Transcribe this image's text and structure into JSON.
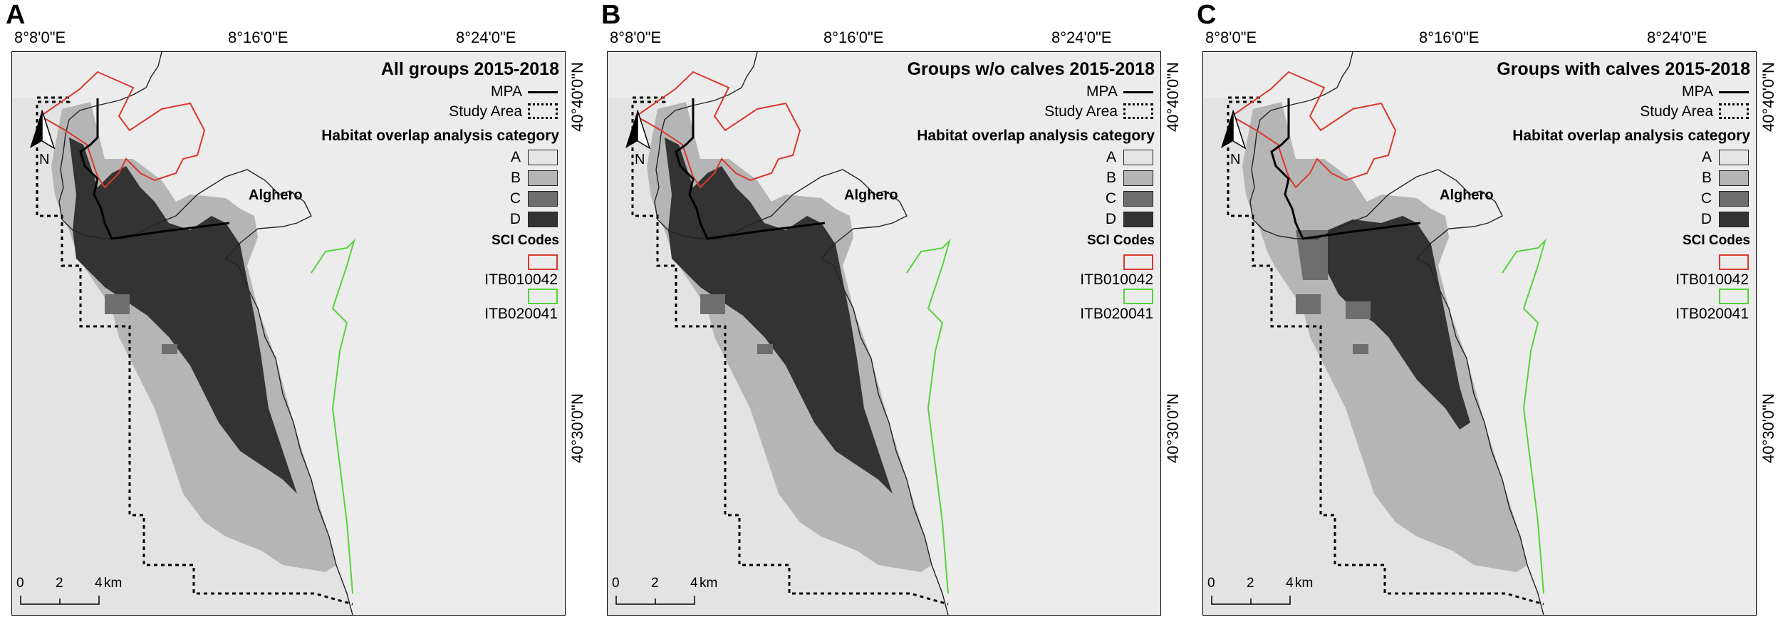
{
  "graticule": {
    "longitudes": [
      "8°8'0\"E",
      "8°16'0\"E",
      "8°24'0\"E"
    ],
    "latitudes": [
      "40°40'0\"N",
      "40°30'0\"N"
    ]
  },
  "legend": {
    "mpa_label": "MPA",
    "study_area_label": "Study Area",
    "habitat_heading": "Habitat overlap analysis category",
    "categories": [
      {
        "label": "A",
        "color": "#e5e5e5"
      },
      {
        "label": "B",
        "color": "#b5b5b5"
      },
      {
        "label": "C",
        "color": "#6e6e6e"
      },
      {
        "label": "D",
        "color": "#333333"
      }
    ],
    "sci_heading": "SCI Codes",
    "sci": [
      {
        "label": "ITB010042",
        "color": "#d93a2f"
      },
      {
        "label": "ITB020041",
        "color": "#55d33a"
      }
    ]
  },
  "north_label": "N",
  "scale_bar": {
    "ticks": [
      "0",
      "2",
      "4"
    ],
    "unit": "km"
  },
  "town": "Alghero",
  "panels": [
    {
      "letter": "A",
      "title": "All groups 2015-2018",
      "variant": "all"
    },
    {
      "letter": "B",
      "title": "Groups w/o calves 2015-2018",
      "variant": "nocalves"
    },
    {
      "letter": "C",
      "title": "Groups with calves 2015-2018",
      "variant": "calves"
    }
  ]
}
